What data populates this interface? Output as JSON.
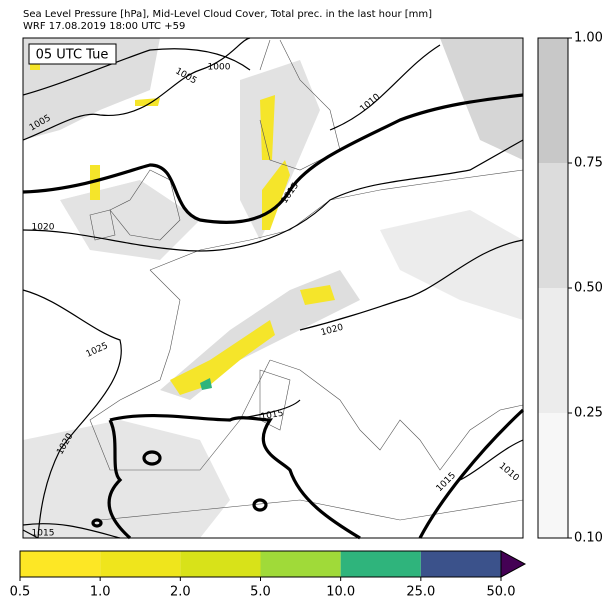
{
  "header": {
    "title": "Sea Level Pressure [hPa], Mid-Level Cloud Cover, Total prec. in the last hour [mm]",
    "subtitle": "WRF 17.08.2019 18:00 UTC +59"
  },
  "map": {
    "time_label": "05 UTC Tue",
    "contour_labels": [
      "1000",
      "1005",
      "1005",
      "1010",
      "1015",
      "1020",
      "1025",
      "1020",
      "1015",
      "1020",
      "1015",
      "1015",
      "1010"
    ]
  },
  "cloud_colorbar": {
    "ticks": [
      "0.10",
      "0.25",
      "0.50",
      "0.75",
      "1.00"
    ],
    "colors": [
      "#f7f7f7",
      "#ececec",
      "#dcdcdc",
      "#c8c8c8"
    ]
  },
  "precip_colorbar": {
    "ticks": [
      "0.5",
      "1.0",
      "2.0",
      "5.0",
      "10.0",
      "25.0",
      "50.0"
    ],
    "colors": [
      "#fde725",
      "#efe51c",
      "#d8e219",
      "#a0da39",
      "#2fb47c",
      "#3b528b"
    ],
    "extend_color": "#440154"
  }
}
